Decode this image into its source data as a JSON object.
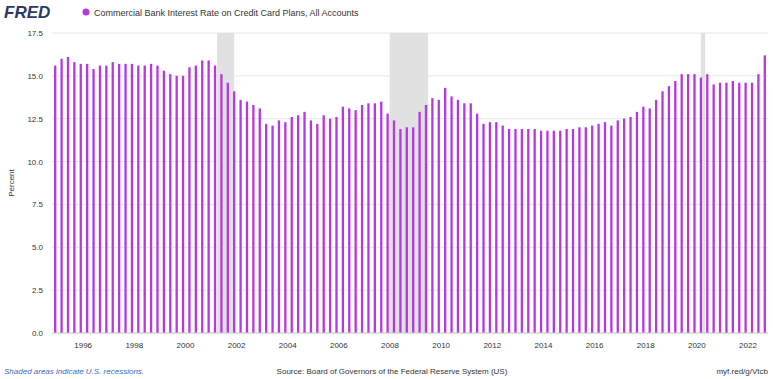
{
  "chart_data": {
    "type": "bar",
    "logo": "FRED",
    "legend": "top-left",
    "categories": [
      null,
      null,
      null,
      null,
      null,
      "1996",
      null,
      null,
      null,
      null,
      null,
      null,
      null,
      "1998",
      null,
      null,
      null,
      null,
      null,
      null,
      null,
      "2000",
      null,
      null,
      null,
      null,
      null,
      null,
      null,
      "2002",
      null,
      null,
      null,
      null,
      null,
      null,
      null,
      "2004",
      null,
      null,
      null,
      null,
      null,
      null,
      null,
      "2006",
      null,
      null,
      null,
      null,
      null,
      null,
      null,
      "2008",
      null,
      null,
      null,
      null,
      null,
      null,
      null,
      "2010",
      null,
      null,
      null,
      null,
      null,
      null,
      null,
      "2012",
      null,
      null,
      null,
      null,
      null,
      null,
      null,
      "2014",
      null,
      null,
      null,
      null,
      null,
      null,
      null,
      "2016",
      null,
      null,
      null,
      null,
      null,
      null,
      null,
      "2018",
      null,
      null,
      null,
      null,
      null,
      null,
      null,
      "2020",
      null,
      null,
      null,
      null,
      null,
      null,
      null,
      "2022",
      null,
      null
    ],
    "series": [
      {
        "name": "Commercial Bank Interest Rate on Credit Card Plans, All Accounts",
        "color": "#b43ae0",
        "values": [
          15.6,
          16.0,
          16.1,
          15.8,
          15.7,
          15.7,
          15.4,
          15.6,
          15.6,
          15.8,
          15.7,
          15.7,
          15.7,
          15.6,
          15.6,
          15.7,
          15.6,
          15.3,
          15.1,
          15.0,
          15.0,
          15.5,
          15.6,
          15.9,
          15.9,
          15.6,
          15.1,
          14.6,
          14.1,
          13.6,
          13.5,
          13.3,
          13.1,
          12.2,
          12.1,
          12.4,
          12.3,
          12.6,
          12.7,
          12.9,
          12.4,
          12.2,
          12.7,
          12.5,
          12.6,
          13.2,
          13.1,
          13.0,
          13.3,
          13.4,
          13.4,
          13.5,
          12.8,
          12.4,
          11.9,
          12.0,
          12.0,
          12.9,
          13.3,
          13.7,
          13.6,
          14.3,
          13.8,
          13.6,
          13.4,
          13.4,
          12.8,
          12.2,
          12.3,
          12.3,
          12.1,
          11.9,
          11.9,
          11.9,
          11.9,
          11.9,
          11.8,
          11.8,
          11.8,
          11.8,
          11.9,
          11.9,
          12.0,
          12.0,
          12.1,
          12.2,
          12.3,
          12.1,
          12.4,
          12.5,
          12.6,
          12.9,
          13.2,
          13.1,
          13.6,
          14.1,
          14.4,
          14.7,
          15.1,
          15.1,
          15.1,
          14.9,
          15.1,
          14.5,
          14.6,
          14.6,
          14.7,
          14.6,
          14.6,
          14.6,
          15.1,
          16.2
        ]
      }
    ],
    "ylim": [
      0,
      17.5
    ],
    "yticks": [
      {
        "value": 0,
        "label": "0.0"
      },
      2.5,
      {
        "value": 5,
        "label": "5.0"
      },
      7.5,
      {
        "value": 10,
        "label": "10.0"
      },
      12.5,
      {
        "value": 15,
        "label": "15.0"
      },
      17.5
    ],
    "y_label": "Percent",
    "grid": true,
    "recessions": [
      [
        25.33,
        28
      ],
      [
        52.33,
        58.33
      ],
      [
        101,
        101.67
      ]
    ],
    "note": "Shaded areas indicate U.S. recessions.",
    "source": "Source: Board of Governors of the Federal Reserve System (US)",
    "link": "myf.red/g/Vtcb"
  }
}
